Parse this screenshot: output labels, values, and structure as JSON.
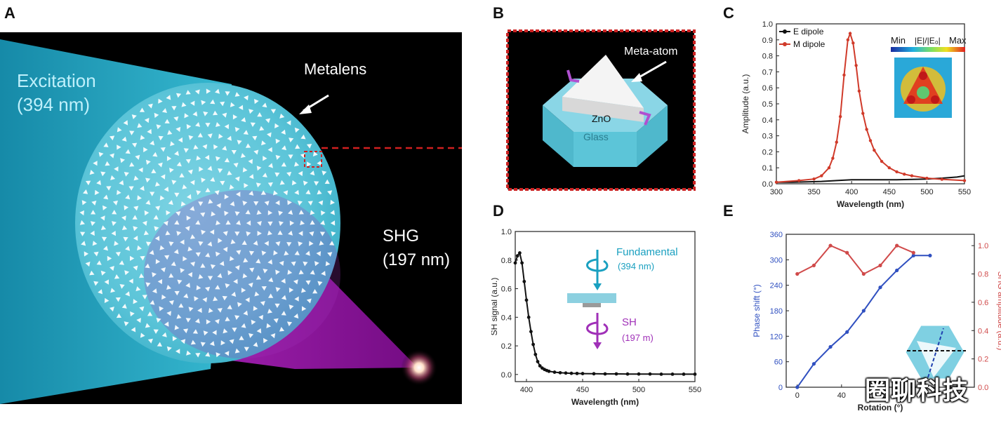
{
  "panels": {
    "A": {
      "letter": "A",
      "excitation_label": "Excitation",
      "excitation_wavelength": "(394 nm)",
      "metalens_label": "Metalens",
      "shg_label": "SHG",
      "shg_wavelength": "(197 nm)",
      "colors": {
        "beam": "#1fa3c1",
        "shg": "#a020b0",
        "background": "#000000"
      }
    },
    "B": {
      "letter": "B",
      "meta_atom_label": "Meta-atom",
      "zno_label": "ZnO",
      "glass_label": "Glass",
      "colors": {
        "border": "#cc2222",
        "glass": "#5fc4d6"
      }
    },
    "C": {
      "letter": "C",
      "legend_e": "E dipole",
      "legend_m": "M dipole",
      "inset_min": "Min",
      "inset_title": "|E|/|E₀|",
      "inset_max": "Max"
    },
    "D": {
      "letter": "D",
      "fundamental_label": "Fundamental",
      "fundamental_wavelength": "(394 nm)",
      "sh_label": "SH",
      "sh_wavelength": "(197 m)"
    },
    "E": {
      "letter": "E"
    }
  },
  "watermark": "圈聊科技",
  "chart_data": [
    {
      "panel": "C",
      "type": "line",
      "xlabel": "Wavelength (nm)",
      "ylabel": "Amplitude (a.u.)",
      "xlim": [
        300,
        550
      ],
      "ylim": [
        0,
        1.0
      ],
      "xticks": [
        300,
        350,
        400,
        450,
        500,
        550
      ],
      "yticks": [
        0.0,
        0.1,
        0.2,
        0.3,
        0.4,
        0.5,
        0.6,
        0.7,
        0.8,
        0.9,
        1.0
      ],
      "legend_position": "top-left",
      "series": [
        {
          "name": "E dipole",
          "color": "#111111",
          "x": [
            300,
            320,
            340,
            360,
            380,
            400,
            420,
            440,
            460,
            480,
            500,
            520,
            540,
            550
          ],
          "y": [
            0.01,
            0.01,
            0.012,
            0.015,
            0.02,
            0.025,
            0.025,
            0.025,
            0.025,
            0.027,
            0.03,
            0.035,
            0.042,
            0.05
          ]
        },
        {
          "name": "M dipole",
          "color": "#d03a2a",
          "x": [
            300,
            330,
            350,
            360,
            370,
            375,
            380,
            385,
            390,
            395,
            398,
            402,
            406,
            410,
            415,
            420,
            425,
            430,
            440,
            450,
            460,
            470,
            480,
            500,
            520,
            550
          ],
          "y": [
            0.01,
            0.02,
            0.03,
            0.05,
            0.1,
            0.16,
            0.26,
            0.42,
            0.68,
            0.9,
            0.94,
            0.88,
            0.74,
            0.58,
            0.44,
            0.34,
            0.27,
            0.21,
            0.14,
            0.1,
            0.075,
            0.06,
            0.05,
            0.035,
            0.028,
            0.02
          ]
        }
      ]
    },
    {
      "panel": "D",
      "type": "line",
      "xlabel": "Wavelength (nm)",
      "ylabel": "SH signal (a.u.)",
      "xlim": [
        390,
        550
      ],
      "ylim": [
        -0.05,
        1.0
      ],
      "xticks": [
        400,
        450,
        500,
        550
      ],
      "yticks": [
        0.0,
        0.2,
        0.4,
        0.6,
        0.8,
        1.0
      ],
      "series": [
        {
          "name": "",
          "color": "#111111",
          "x": [
            390,
            392,
            394,
            396,
            398,
            400,
            402,
            404,
            406,
            408,
            410,
            412,
            414,
            416,
            418,
            420,
            425,
            430,
            435,
            440,
            445,
            450,
            460,
            470,
            480,
            490,
            500,
            510,
            520,
            530,
            540,
            550
          ],
          "y": [
            0.78,
            0.83,
            0.85,
            0.78,
            0.65,
            0.52,
            0.4,
            0.3,
            0.21,
            0.14,
            0.09,
            0.06,
            0.045,
            0.035,
            0.028,
            0.022,
            0.016,
            0.012,
            0.01,
            0.008,
            0.007,
            0.006,
            0.005,
            0.004,
            0.004,
            0.003,
            0.003,
            0.003,
            0.002,
            0.002,
            0.002,
            0.002
          ]
        }
      ]
    },
    {
      "panel": "E",
      "type": "line",
      "xlabel": "Rotation (°)",
      "ylabel": "Phase shift (°)",
      "ylabel_right": "SHG amplitude (a.u.)",
      "xlim": [
        -10,
        160
      ],
      "ylim": [
        0,
        360
      ],
      "ylim_right": [
        0,
        1.08
      ],
      "xticks": [
        0,
        40
      ],
      "yticks": [
        0,
        60,
        120,
        180,
        240,
        300,
        360
      ],
      "yticks_right": [
        0.0,
        0.2,
        0.4,
        0.6,
        0.8,
        1.0
      ],
      "series": [
        {
          "name": "",
          "axis": "left",
          "color": "#3050c0",
          "x": [
            0,
            15,
            30,
            45,
            60,
            75,
            90,
            105,
            120
          ],
          "y": [
            0,
            55,
            95,
            130,
            180,
            235,
            275,
            310,
            310
          ]
        },
        {
          "name": "",
          "axis": "right",
          "color": "#d04a4a",
          "x": [
            0,
            15,
            30,
            45,
            60,
            75,
            90,
            105
          ],
          "y": [
            0.8,
            0.86,
            1.0,
            0.95,
            0.8,
            0.86,
            1.0,
            0.95
          ]
        }
      ]
    }
  ]
}
